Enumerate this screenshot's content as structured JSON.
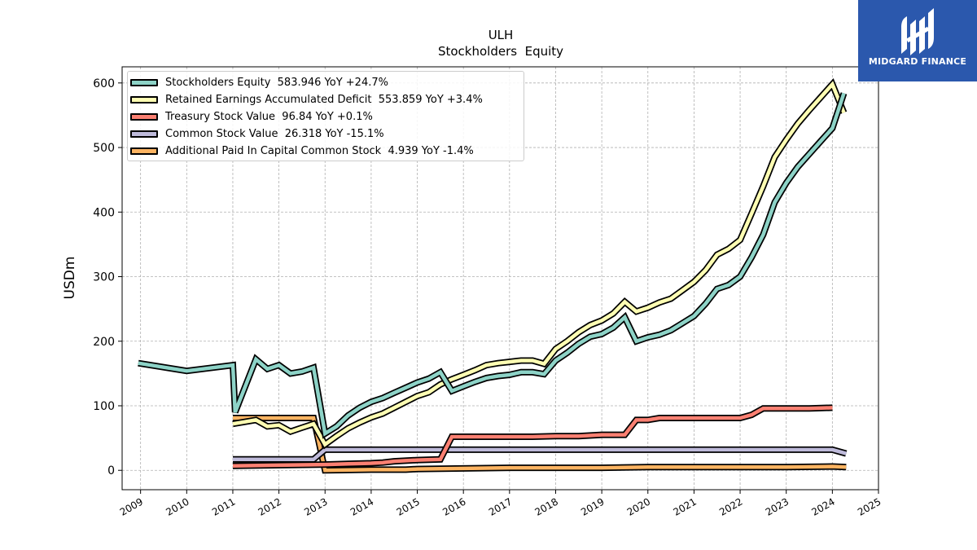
{
  "chart_data": {
    "type": "line",
    "title": "ULH",
    "subtitle": "Stockholders  Equity",
    "ylabel": "USDm",
    "xlabel": "",
    "xlim": [
      2008.6,
      2025.0
    ],
    "ylim": [
      -30,
      625
    ],
    "yticks": [
      0,
      100,
      200,
      300,
      400,
      500,
      600
    ],
    "xticks": [
      "2009",
      "2010",
      "2011",
      "2012",
      "2013",
      "2014",
      "2015",
      "2016",
      "2017",
      "2018",
      "2019",
      "2020",
      "2021",
      "2022",
      "2023",
      "2024",
      "2025"
    ],
    "grid": true,
    "legend_position": "top-left",
    "series": [
      {
        "name": "Stockholders Equity  583.946 YoY +24.7%",
        "color": "#8dd3c7",
        "points": [
          [
            2008.95,
            166
          ],
          [
            2010.0,
            154
          ],
          [
            2011.0,
            163
          ],
          [
            2011.05,
            90
          ],
          [
            2011.5,
            172
          ],
          [
            2011.75,
            157
          ],
          [
            2012.0,
            163
          ],
          [
            2012.25,
            150
          ],
          [
            2012.5,
            153
          ],
          [
            2012.75,
            159
          ],
          [
            2013.0,
            57
          ],
          [
            2013.25,
            68
          ],
          [
            2013.5,
            85
          ],
          [
            2013.75,
            97
          ],
          [
            2014.0,
            106
          ],
          [
            2014.25,
            112
          ],
          [
            2014.5,
            120
          ],
          [
            2014.75,
            128
          ],
          [
            2015.0,
            136
          ],
          [
            2015.25,
            142
          ],
          [
            2015.5,
            152
          ],
          [
            2015.75,
            123
          ],
          [
            2016.0,
            130
          ],
          [
            2016.25,
            137
          ],
          [
            2016.5,
            143
          ],
          [
            2016.75,
            146
          ],
          [
            2017.0,
            148
          ],
          [
            2017.25,
            152
          ],
          [
            2017.5,
            152
          ],
          [
            2017.75,
            149
          ],
          [
            2018.0,
            170
          ],
          [
            2018.25,
            182
          ],
          [
            2018.5,
            196
          ],
          [
            2018.75,
            207
          ],
          [
            2019.0,
            211
          ],
          [
            2019.25,
            221
          ],
          [
            2019.5,
            237
          ],
          [
            2019.75,
            200
          ],
          [
            2020.0,
            206
          ],
          [
            2020.25,
            210
          ],
          [
            2020.5,
            217
          ],
          [
            2020.75,
            228
          ],
          [
            2021.0,
            239
          ],
          [
            2021.25,
            258
          ],
          [
            2021.5,
            281
          ],
          [
            2021.75,
            287
          ],
          [
            2022.0,
            300
          ],
          [
            2022.25,
            330
          ],
          [
            2022.5,
            365
          ],
          [
            2022.75,
            415
          ],
          [
            2023.0,
            445
          ],
          [
            2023.25,
            470
          ],
          [
            2023.5,
            490
          ],
          [
            2023.75,
            510
          ],
          [
            2024.0,
            530
          ],
          [
            2024.25,
            584
          ]
        ]
      },
      {
        "name": "Retained Earnings Accumulated Deficit  553.859 YoY +3.4%",
        "color": "#ffffb3",
        "points": [
          [
            2011.0,
            72
          ],
          [
            2011.25,
            75
          ],
          [
            2011.5,
            78
          ],
          [
            2011.75,
            68
          ],
          [
            2012.0,
            70
          ],
          [
            2012.25,
            60
          ],
          [
            2012.5,
            66
          ],
          [
            2012.75,
            72
          ],
          [
            2013.0,
            40
          ],
          [
            2013.25,
            53
          ],
          [
            2013.5,
            65
          ],
          [
            2013.75,
            74
          ],
          [
            2014.0,
            82
          ],
          [
            2014.25,
            88
          ],
          [
            2014.5,
            97
          ],
          [
            2014.75,
            106
          ],
          [
            2015.0,
            115
          ],
          [
            2015.25,
            121
          ],
          [
            2015.5,
            133
          ],
          [
            2015.75,
            141
          ],
          [
            2016.0,
            148
          ],
          [
            2016.25,
            155
          ],
          [
            2016.5,
            163
          ],
          [
            2016.75,
            166
          ],
          [
            2017.0,
            168
          ],
          [
            2017.25,
            170
          ],
          [
            2017.5,
            170
          ],
          [
            2017.75,
            165
          ],
          [
            2018.0,
            188
          ],
          [
            2018.25,
            200
          ],
          [
            2018.5,
            214
          ],
          [
            2018.75,
            225
          ],
          [
            2019.0,
            232
          ],
          [
            2019.25,
            243
          ],
          [
            2019.5,
            261
          ],
          [
            2019.75,
            246
          ],
          [
            2020.0,
            252
          ],
          [
            2020.25,
            260
          ],
          [
            2020.5,
            266
          ],
          [
            2020.75,
            279
          ],
          [
            2021.0,
            292
          ],
          [
            2021.25,
            310
          ],
          [
            2021.5,
            334
          ],
          [
            2021.75,
            343
          ],
          [
            2022.0,
            357
          ],
          [
            2022.25,
            398
          ],
          [
            2022.5,
            440
          ],
          [
            2022.75,
            485
          ],
          [
            2023.0,
            512
          ],
          [
            2023.25,
            537
          ],
          [
            2023.5,
            558
          ],
          [
            2023.75,
            578
          ],
          [
            2024.0,
            598
          ],
          [
            2024.25,
            554
          ]
        ]
      },
      {
        "name": "Treasury Stock Value  96.84 YoY +0.1%",
        "color": "#fb8072",
        "points": [
          [
            2011.0,
            7
          ],
          [
            2012.0,
            8
          ],
          [
            2013.0,
            9
          ],
          [
            2013.5,
            10
          ],
          [
            2014.0,
            11
          ],
          [
            2014.25,
            12
          ],
          [
            2014.5,
            14
          ],
          [
            2015.0,
            16
          ],
          [
            2015.5,
            17
          ],
          [
            2015.75,
            52
          ],
          [
            2016.0,
            52
          ],
          [
            2016.5,
            52
          ],
          [
            2017.0,
            52
          ],
          [
            2017.5,
            52
          ],
          [
            2018.0,
            53
          ],
          [
            2018.5,
            53
          ],
          [
            2019.0,
            55
          ],
          [
            2019.5,
            55
          ],
          [
            2019.75,
            78
          ],
          [
            2020.0,
            78
          ],
          [
            2020.25,
            81
          ],
          [
            2020.5,
            81
          ],
          [
            2021.0,
            81
          ],
          [
            2021.5,
            81
          ],
          [
            2022.0,
            81
          ],
          [
            2022.25,
            86
          ],
          [
            2022.5,
            96
          ],
          [
            2023.0,
            96
          ],
          [
            2023.5,
            96
          ],
          [
            2024.0,
            97
          ]
        ]
      },
      {
        "name": "Common Stock Value  26.318 YoY -15.1%",
        "color": "#bebada",
        "points": [
          [
            2011.0,
            17
          ],
          [
            2012.0,
            17
          ],
          [
            2012.75,
            17
          ],
          [
            2013.0,
            32
          ],
          [
            2014.0,
            32
          ],
          [
            2015.0,
            32
          ],
          [
            2016.0,
            32
          ],
          [
            2017.0,
            32
          ],
          [
            2018.0,
            32
          ],
          [
            2019.0,
            32
          ],
          [
            2020.0,
            32
          ],
          [
            2021.0,
            32
          ],
          [
            2022.0,
            32
          ],
          [
            2023.0,
            32
          ],
          [
            2024.0,
            32
          ],
          [
            2024.3,
            26
          ]
        ]
      },
      {
        "name": "Additional Paid In Capital Common Stock  4.939 YoY -1.4%",
        "color": "#fdb462",
        "points": [
          [
            2011.0,
            81
          ],
          [
            2012.0,
            81
          ],
          [
            2012.75,
            81
          ],
          [
            2013.0,
            0
          ],
          [
            2014.0,
            1
          ],
          [
            2014.75,
            1
          ],
          [
            2015.0,
            2
          ],
          [
            2016.0,
            3
          ],
          [
            2017.0,
            4
          ],
          [
            2018.0,
            4
          ],
          [
            2019.0,
            4
          ],
          [
            2020.0,
            5
          ],
          [
            2021.0,
            5
          ],
          [
            2022.0,
            5
          ],
          [
            2023.0,
            5
          ],
          [
            2024.0,
            6
          ],
          [
            2024.3,
            5
          ]
        ]
      }
    ]
  },
  "logo": {
    "text": "MIDGARD FINANCE",
    "bg_color": "#2b58ad"
  }
}
